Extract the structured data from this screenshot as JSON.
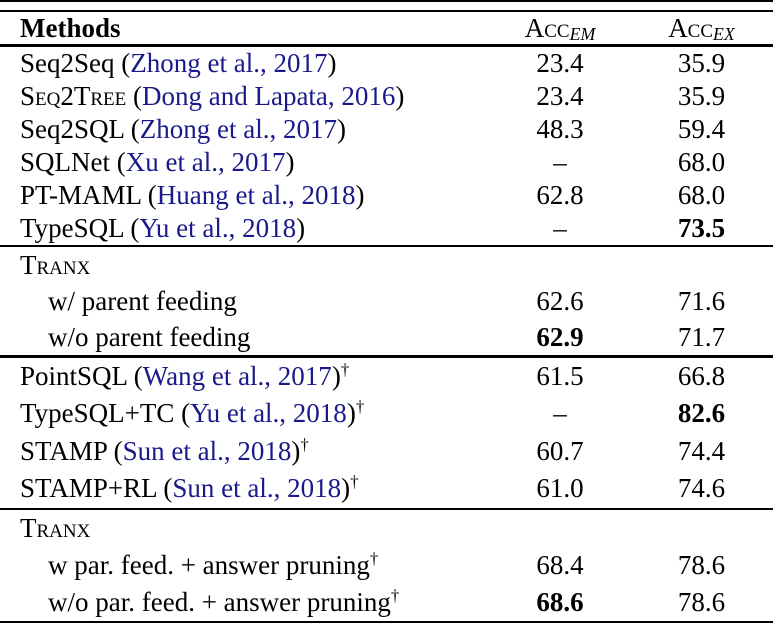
{
  "symbols": {
    "paren_open": "(",
    "paren_close": ")",
    "dagger": "†"
  },
  "colors": {
    "citation_blue": "#19198a",
    "text": "#000000",
    "background": "#ffffff",
    "rule": "#000000"
  },
  "table": {
    "header": {
      "methods": "Methods",
      "acc_em": {
        "base": "Acc",
        "sub": "EM"
      },
      "acc_ex": {
        "base": "Acc",
        "sub": "EX"
      }
    },
    "sections": [
      {
        "rows": [
          {
            "method": "Seq2Seq",
            "smallcaps": false,
            "cite": "Zhong et al., 2017",
            "dagger": false,
            "indent": false,
            "em": "23.4",
            "em_bold": false,
            "ex": "35.9",
            "ex_bold": false
          },
          {
            "method": "Seq2Tree",
            "smallcaps": true,
            "cite": "Dong and Lapata, 2016",
            "dagger": false,
            "indent": false,
            "em": "23.4",
            "em_bold": false,
            "ex": "35.9",
            "ex_bold": false
          },
          {
            "method": "Seq2SQL",
            "smallcaps": false,
            "cite": "Zhong et al., 2017",
            "dagger": false,
            "indent": false,
            "em": "48.3",
            "em_bold": false,
            "ex": "59.4",
            "ex_bold": false
          },
          {
            "method": "SQLNet",
            "smallcaps": false,
            "cite": "Xu et al., 2017",
            "dagger": false,
            "indent": false,
            "em": "–",
            "em_bold": false,
            "ex": "68.0",
            "ex_bold": false
          },
          {
            "method": "PT-MAML",
            "smallcaps": false,
            "cite": "Huang et al., 2018",
            "dagger": false,
            "indent": false,
            "em": "62.8",
            "em_bold": false,
            "ex": "68.0",
            "ex_bold": false
          },
          {
            "method": "TypeSQL",
            "smallcaps": false,
            "cite": "Yu et al., 2018",
            "dagger": false,
            "indent": false,
            "em": "–",
            "em_bold": false,
            "ex": "73.5",
            "ex_bold": true
          }
        ]
      },
      {
        "rows": [
          {
            "method": "Tranx",
            "smallcaps": true,
            "cite": null,
            "dagger": false,
            "indent": false,
            "em": "",
            "em_bold": false,
            "ex": "",
            "ex_bold": false
          },
          {
            "method": "w/ parent feeding",
            "smallcaps": false,
            "cite": null,
            "dagger": false,
            "indent": true,
            "em": "62.6",
            "em_bold": false,
            "ex": "71.6",
            "ex_bold": false
          },
          {
            "method": "w/o parent feeding",
            "smallcaps": false,
            "cite": null,
            "dagger": false,
            "indent": true,
            "em": "62.9",
            "em_bold": true,
            "ex": "71.7",
            "ex_bold": false
          }
        ]
      },
      {
        "rows": [
          {
            "method": "PointSQL",
            "smallcaps": false,
            "cite": "Wang et al., 2017",
            "dagger": true,
            "indent": false,
            "em": "61.5",
            "em_bold": false,
            "ex": "66.8",
            "ex_bold": false
          },
          {
            "method": "TypeSQL+TC",
            "smallcaps": false,
            "cite": "Yu et al., 2018",
            "dagger": true,
            "indent": false,
            "em": "–",
            "em_bold": false,
            "ex": "82.6",
            "ex_bold": true
          },
          {
            "method": "STAMP",
            "smallcaps": false,
            "cite": "Sun et al., 2018",
            "dagger": true,
            "indent": false,
            "em": "60.7",
            "em_bold": false,
            "ex": "74.4",
            "ex_bold": false
          },
          {
            "method": "STAMP+RL",
            "smallcaps": false,
            "cite": "Sun et al., 2018",
            "dagger": true,
            "indent": false,
            "em": "61.0",
            "em_bold": false,
            "ex": "74.6",
            "ex_bold": false
          }
        ]
      },
      {
        "rows": [
          {
            "method": "Tranx",
            "smallcaps": true,
            "cite": null,
            "dagger": false,
            "indent": false,
            "em": "",
            "em_bold": false,
            "ex": "",
            "ex_bold": false
          },
          {
            "method": "w par. feed. + answer pruning",
            "smallcaps": false,
            "cite": null,
            "dagger": true,
            "indent": true,
            "em": "68.4",
            "em_bold": false,
            "ex": "78.6",
            "ex_bold": false
          },
          {
            "method": "w/o par. feed. + answer pruning",
            "smallcaps": false,
            "cite": null,
            "dagger": true,
            "indent": true,
            "em": "68.6",
            "em_bold": true,
            "ex": "78.6",
            "ex_bold": false
          }
        ]
      }
    ]
  }
}
